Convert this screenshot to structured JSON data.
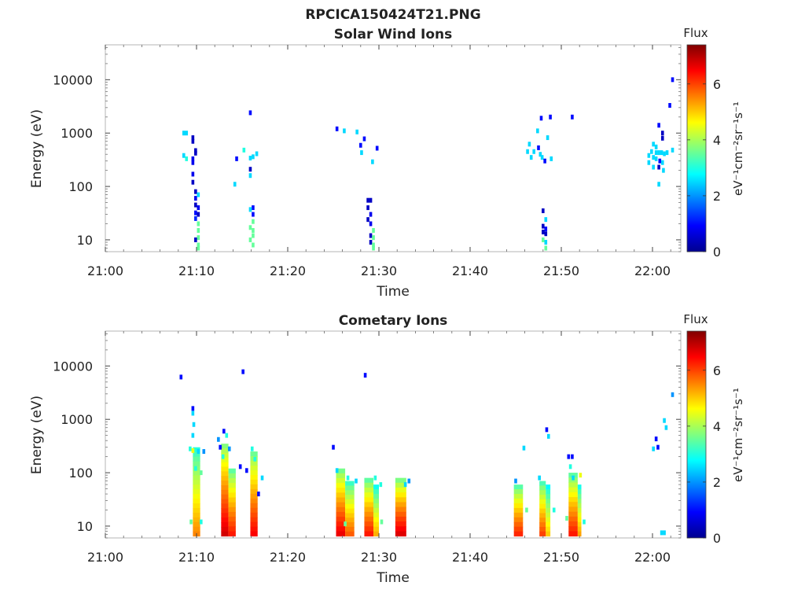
{
  "figure": {
    "title": "RPCICA150424T21.PNG"
  },
  "chart_data": [
    {
      "type": "heatmap",
      "title": "Solar Wind Ions",
      "xlabel": "Time",
      "ylabel": "Energy (eV)",
      "x_ticks": [
        "21:00",
        "21:10",
        "21:20",
        "21:30",
        "21:40",
        "21:50",
        "22:00"
      ],
      "x_range_min": [
        0,
        62.5
      ],
      "y_scale": "log",
      "y_ticks": [
        "10",
        "100",
        "1000",
        "10000"
      ],
      "ylim": [
        6,
        45000
      ],
      "colorbar": {
        "label": "Flux",
        "unit": "eV⁻¹cm⁻²sr⁻¹s⁻¹",
        "ticks": [
          "0",
          "2",
          "4",
          "6"
        ],
        "range": [
          0,
          7.4
        ]
      },
      "cells": [
        [
          8.6,
          1000,
          2.5
        ],
        [
          8.9,
          1000,
          2.5
        ],
        [
          8.6,
          380,
          2.5
        ],
        [
          8.9,
          330,
          3
        ],
        [
          9.6,
          820,
          0.5
        ],
        [
          9.6,
          700,
          0.5
        ],
        [
          9.9,
          470,
          0.5
        ],
        [
          9.9,
          420,
          0.5
        ],
        [
          9.6,
          330,
          0.8
        ],
        [
          9.6,
          280,
          0.8
        ],
        [
          9.6,
          170,
          0.8
        ],
        [
          9.6,
          120,
          0.5
        ],
        [
          9.9,
          80,
          0.5
        ],
        [
          9.9,
          60,
          0.8
        ],
        [
          10.2,
          70,
          2.5
        ],
        [
          9.9,
          45,
          0.5
        ],
        [
          10.2,
          40,
          0.8
        ],
        [
          9.9,
          32,
          1
        ],
        [
          10.2,
          30,
          0.5
        ],
        [
          9.9,
          25,
          1.2
        ],
        [
          10.2,
          20,
          3.5
        ],
        [
          10.2,
          15,
          3.5
        ],
        [
          10.2,
          11,
          3.5
        ],
        [
          9.9,
          10,
          0.5
        ],
        [
          10.2,
          8,
          3.5
        ],
        [
          10.2,
          7,
          3.5
        ],
        [
          14.4,
          330,
          1
        ],
        [
          14.2,
          110,
          2.5
        ],
        [
          15.2,
          480,
          3
        ],
        [
          15.9,
          2400,
          1
        ],
        [
          15.9,
          340,
          2.5
        ],
        [
          16.2,
          360,
          2.5
        ],
        [
          16.6,
          410,
          2.5
        ],
        [
          15.9,
          210,
          0.5
        ],
        [
          15.9,
          160,
          2.5
        ],
        [
          16.2,
          40,
          1
        ],
        [
          15.9,
          37,
          2.5
        ],
        [
          16.2,
          30,
          1
        ],
        [
          16.2,
          22,
          3.5
        ],
        [
          15.9,
          17,
          3.5
        ],
        [
          16.2,
          15,
          3.5
        ],
        [
          16.2,
          12,
          3.5
        ],
        [
          15.9,
          10,
          3.5
        ],
        [
          16.2,
          8,
          3.5
        ],
        [
          25.4,
          1200,
          1
        ],
        [
          26.2,
          1100,
          2.5
        ],
        [
          27.6,
          1050,
          2.5
        ],
        [
          28.4,
          780,
          1
        ],
        [
          28.0,
          590,
          1
        ],
        [
          28.1,
          430,
          2.5
        ],
        [
          29.3,
          290,
          2.5
        ],
        [
          29.8,
          520,
          1
        ],
        [
          28.8,
          55,
          0.5
        ],
        [
          29.1,
          55,
          0.5
        ],
        [
          28.8,
          40,
          0.5
        ],
        [
          29.1,
          30,
          0.8
        ],
        [
          28.8,
          24,
          0.5
        ],
        [
          29.1,
          20,
          0.8
        ],
        [
          29.4,
          15,
          3.5
        ],
        [
          29.1,
          12,
          0.5
        ],
        [
          29.4,
          11,
          3.5
        ],
        [
          29.1,
          9,
          0.5
        ],
        [
          29.4,
          8,
          3.5
        ],
        [
          29.4,
          7,
          3.5
        ],
        [
          47.8,
          1900,
          1
        ],
        [
          48.8,
          2000,
          1
        ],
        [
          51.2,
          2000,
          1
        ],
        [
          47.4,
          1100,
          2.5
        ],
        [
          46.5,
          620,
          2.5
        ],
        [
          48.5,
          820,
          2.5
        ],
        [
          46.3,
          450,
          2.5
        ],
        [
          47.0,
          450,
          2.5
        ],
        [
          47.5,
          530,
          1
        ],
        [
          47.7,
          400,
          2.5
        ],
        [
          46.7,
          350,
          2.5
        ],
        [
          47.9,
          350,
          2.5
        ],
        [
          48.2,
          300,
          1
        ],
        [
          48.9,
          330,
          2.5
        ],
        [
          48.0,
          35,
          0.5
        ],
        [
          48.3,
          24,
          2.5
        ],
        [
          48.0,
          18,
          0.5
        ],
        [
          48.3,
          16,
          1
        ],
        [
          48.0,
          14,
          0.5
        ],
        [
          48.3,
          13,
          0.5
        ],
        [
          48.0,
          10,
          3.5
        ],
        [
          48.3,
          9,
          2.5
        ],
        [
          48.3,
          7,
          3.5
        ],
        [
          60.7,
          1400,
          1
        ],
        [
          61.1,
          1000,
          0.5
        ],
        [
          61.1,
          800,
          0.5
        ],
        [
          60.1,
          620,
          2.5
        ],
        [
          60.4,
          550,
          2.5
        ],
        [
          59.9,
          450,
          2.5
        ],
        [
          60.4,
          430,
          2.5
        ],
        [
          60.7,
          430,
          2.5
        ],
        [
          61.0,
          430,
          2.5
        ],
        [
          61.3,
          410,
          2.5
        ],
        [
          61.6,
          430,
          2.5
        ],
        [
          59.6,
          380,
          2.5
        ],
        [
          60.1,
          350,
          2.5
        ],
        [
          60.4,
          330,
          2.5
        ],
        [
          60.8,
          300,
          1
        ],
        [
          61.1,
          280,
          2.5
        ],
        [
          59.6,
          280,
          2.5
        ],
        [
          60.1,
          230,
          2.5
        ],
        [
          60.7,
          230,
          0.5
        ],
        [
          61.2,
          200,
          2.5
        ],
        [
          60.7,
          110,
          2.5
        ],
        [
          62.2,
          10000,
          1
        ],
        [
          61.9,
          3300,
          1
        ],
        [
          62.2,
          480,
          2.5
        ]
      ]
    },
    {
      "type": "heatmap",
      "title": "Cometary Ions",
      "xlabel": "Time",
      "ylabel": "Energy (eV)",
      "x_ticks": [
        "21:00",
        "21:10",
        "21:20",
        "21:30",
        "21:40",
        "21:50",
        "22:00"
      ],
      "x_range_min": [
        0,
        62.5
      ],
      "y_scale": "log",
      "y_ticks": [
        "10",
        "100",
        "1000",
        "10000"
      ],
      "ylim": [
        6,
        45000
      ],
      "colorbar": {
        "label": "Flux",
        "unit": "eV⁻¹cm⁻²sr⁻¹s⁻¹",
        "ticks": [
          "0",
          "2",
          "4",
          "6"
        ],
        "range": [
          0,
          7.4
        ]
      },
      "cells": [
        [
          8.3,
          6200,
          1
        ],
        [
          15.1,
          7800,
          1
        ],
        [
          28.5,
          6700,
          1
        ],
        [
          9.6,
          1600,
          1
        ],
        [
          9.6,
          1300,
          2.5
        ],
        [
          9.7,
          800,
          2.5
        ],
        [
          9.6,
          500,
          2.5
        ],
        [
          9.3,
          280,
          3
        ],
        [
          9.6,
          260,
          4.5
        ],
        [
          9.9,
          180,
          3.5
        ],
        [
          10.2,
          250,
          2.5
        ],
        [
          9.9,
          120,
          3
        ],
        [
          10.5,
          100,
          3.5
        ],
        [
          10.8,
          250,
          2
        ],
        [
          12.4,
          420,
          2
        ],
        [
          12.6,
          300,
          1
        ],
        [
          12.9,
          200,
          3
        ],
        [
          13.0,
          600,
          1
        ],
        [
          13.3,
          500,
          3
        ],
        [
          13.6,
          280,
          2
        ],
        [
          14.8,
          130,
          1
        ],
        [
          15.5,
          110,
          1
        ],
        [
          16.1,
          280,
          3
        ],
        [
          16.4,
          180,
          3
        ],
        [
          17.2,
          80,
          2.5
        ],
        [
          16.8,
          40,
          1
        ],
        [
          25.0,
          300,
          1
        ],
        [
          25.4,
          110,
          2.5
        ],
        [
          26.6,
          80,
          3
        ],
        [
          27.5,
          70,
          2.5
        ],
        [
          29.6,
          80,
          3
        ],
        [
          30.2,
          60,
          3
        ],
        [
          32.9,
          60,
          2.5
        ],
        [
          33.3,
          70,
          2
        ],
        [
          45.0,
          70,
          2
        ],
        [
          45.9,
          290,
          2.5
        ],
        [
          47.6,
          80,
          2.5
        ],
        [
          48.4,
          640,
          1
        ],
        [
          48.6,
          480,
          2.5
        ],
        [
          50.8,
          200,
          1
        ],
        [
          51.2,
          200,
          1
        ],
        [
          51.0,
          130,
          3
        ],
        [
          51.3,
          80,
          2.5
        ],
        [
          52.1,
          90,
          4.5
        ],
        [
          60.1,
          280,
          2.5
        ],
        [
          60.4,
          430,
          1
        ],
        [
          60.6,
          300,
          1
        ],
        [
          61.3,
          950,
          2.5
        ],
        [
          61.5,
          700,
          2.5
        ],
        [
          62.2,
          2900,
          2
        ],
        [
          61.0,
          7.5,
          2.5
        ],
        [
          61.3,
          7.5,
          2.5
        ],
        [
          9.4,
          12,
          3.5
        ],
        [
          10.5,
          12,
          3
        ],
        [
          26.3,
          11,
          3.5
        ],
        [
          30.3,
          12,
          3.5
        ],
        [
          46.2,
          20,
          3.5
        ],
        [
          49.2,
          20,
          3
        ],
        [
          50.6,
          14,
          3.5
        ],
        [
          52.5,
          12,
          3
        ]
      ],
      "columns": [
        [
          9.6,
          10.4,
          6.5,
          300,
          5.5
        ],
        [
          12.7,
          13.5,
          6.5,
          350,
          6.8
        ],
        [
          13.5,
          14.3,
          6.5,
          120,
          6.3
        ],
        [
          15.9,
          16.7,
          6.5,
          250,
          6.5
        ],
        [
          25.3,
          26.3,
          6.5,
          120,
          6.6
        ],
        [
          26.3,
          27.3,
          6.5,
          70,
          5.8
        ],
        [
          28.4,
          29.4,
          6.5,
          80,
          6.3
        ],
        [
          29.4,
          30.0,
          6.5,
          60,
          5.2
        ],
        [
          31.8,
          33.0,
          6.5,
          80,
          6.7
        ],
        [
          44.8,
          45.8,
          6.5,
          60,
          6.2
        ],
        [
          47.6,
          48.3,
          6.5,
          70,
          6.0
        ],
        [
          48.3,
          48.8,
          6.5,
          60,
          5.0
        ],
        [
          50.8,
          51.8,
          6.5,
          100,
          6.3
        ],
        [
          51.8,
          52.2,
          6.5,
          60,
          5.3
        ]
      ]
    }
  ]
}
